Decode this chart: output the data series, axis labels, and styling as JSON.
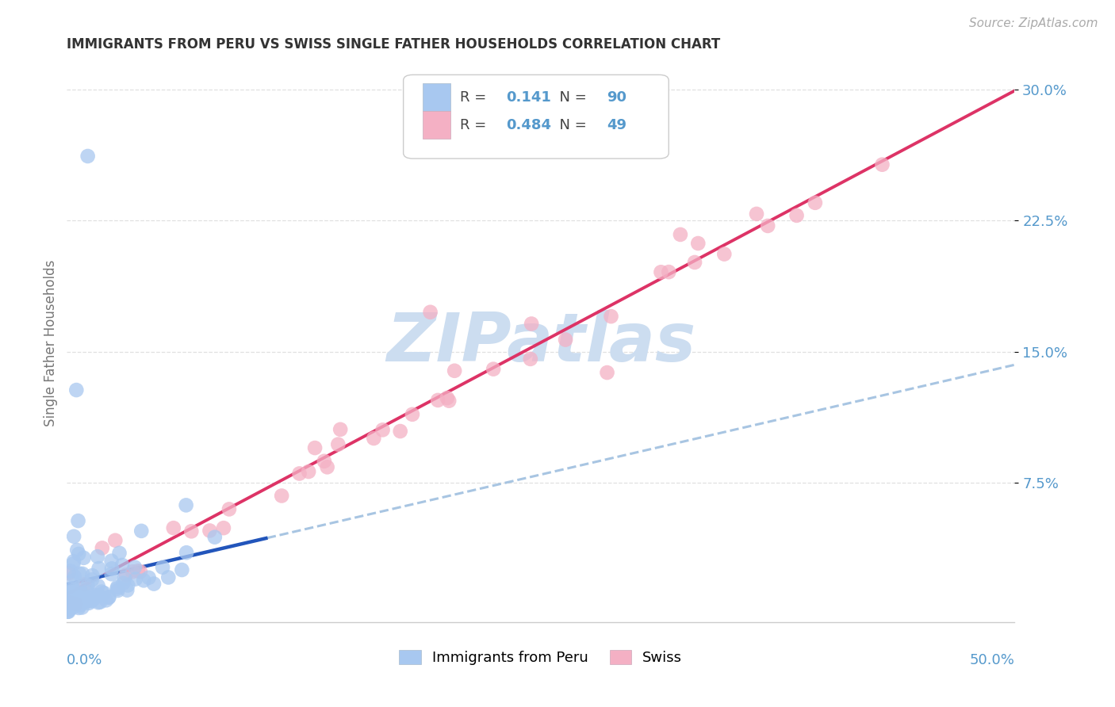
{
  "title": "IMMIGRANTS FROM PERU VS SWISS SINGLE FATHER HOUSEHOLDS CORRELATION CHART",
  "source": "Source: ZipAtlas.com",
  "ylabel": "Single Father Households",
  "xlim": [
    0.0,
    0.5
  ],
  "ylim": [
    -0.005,
    0.315
  ],
  "blue_R": 0.141,
  "blue_N": 90,
  "pink_R": 0.484,
  "pink_N": 49,
  "blue_color": "#a8c8f0",
  "pink_color": "#f4b0c4",
  "blue_line_color": "#2255bb",
  "pink_line_color": "#dd3366",
  "dash_line_color": "#99bbdd",
  "watermark_color": "#ddeeff",
  "background_color": "#ffffff",
  "grid_color": "#dddddd",
  "tick_color": "#5599cc",
  "legend_label_blue": "Immigrants from Peru",
  "legend_label_pink": "Swiss",
  "ytick_vals": [
    0.075,
    0.15,
    0.225,
    0.3
  ],
  "ytick_labels": [
    "7.5%",
    "15.0%",
    "22.5%",
    "30.0%"
  ]
}
